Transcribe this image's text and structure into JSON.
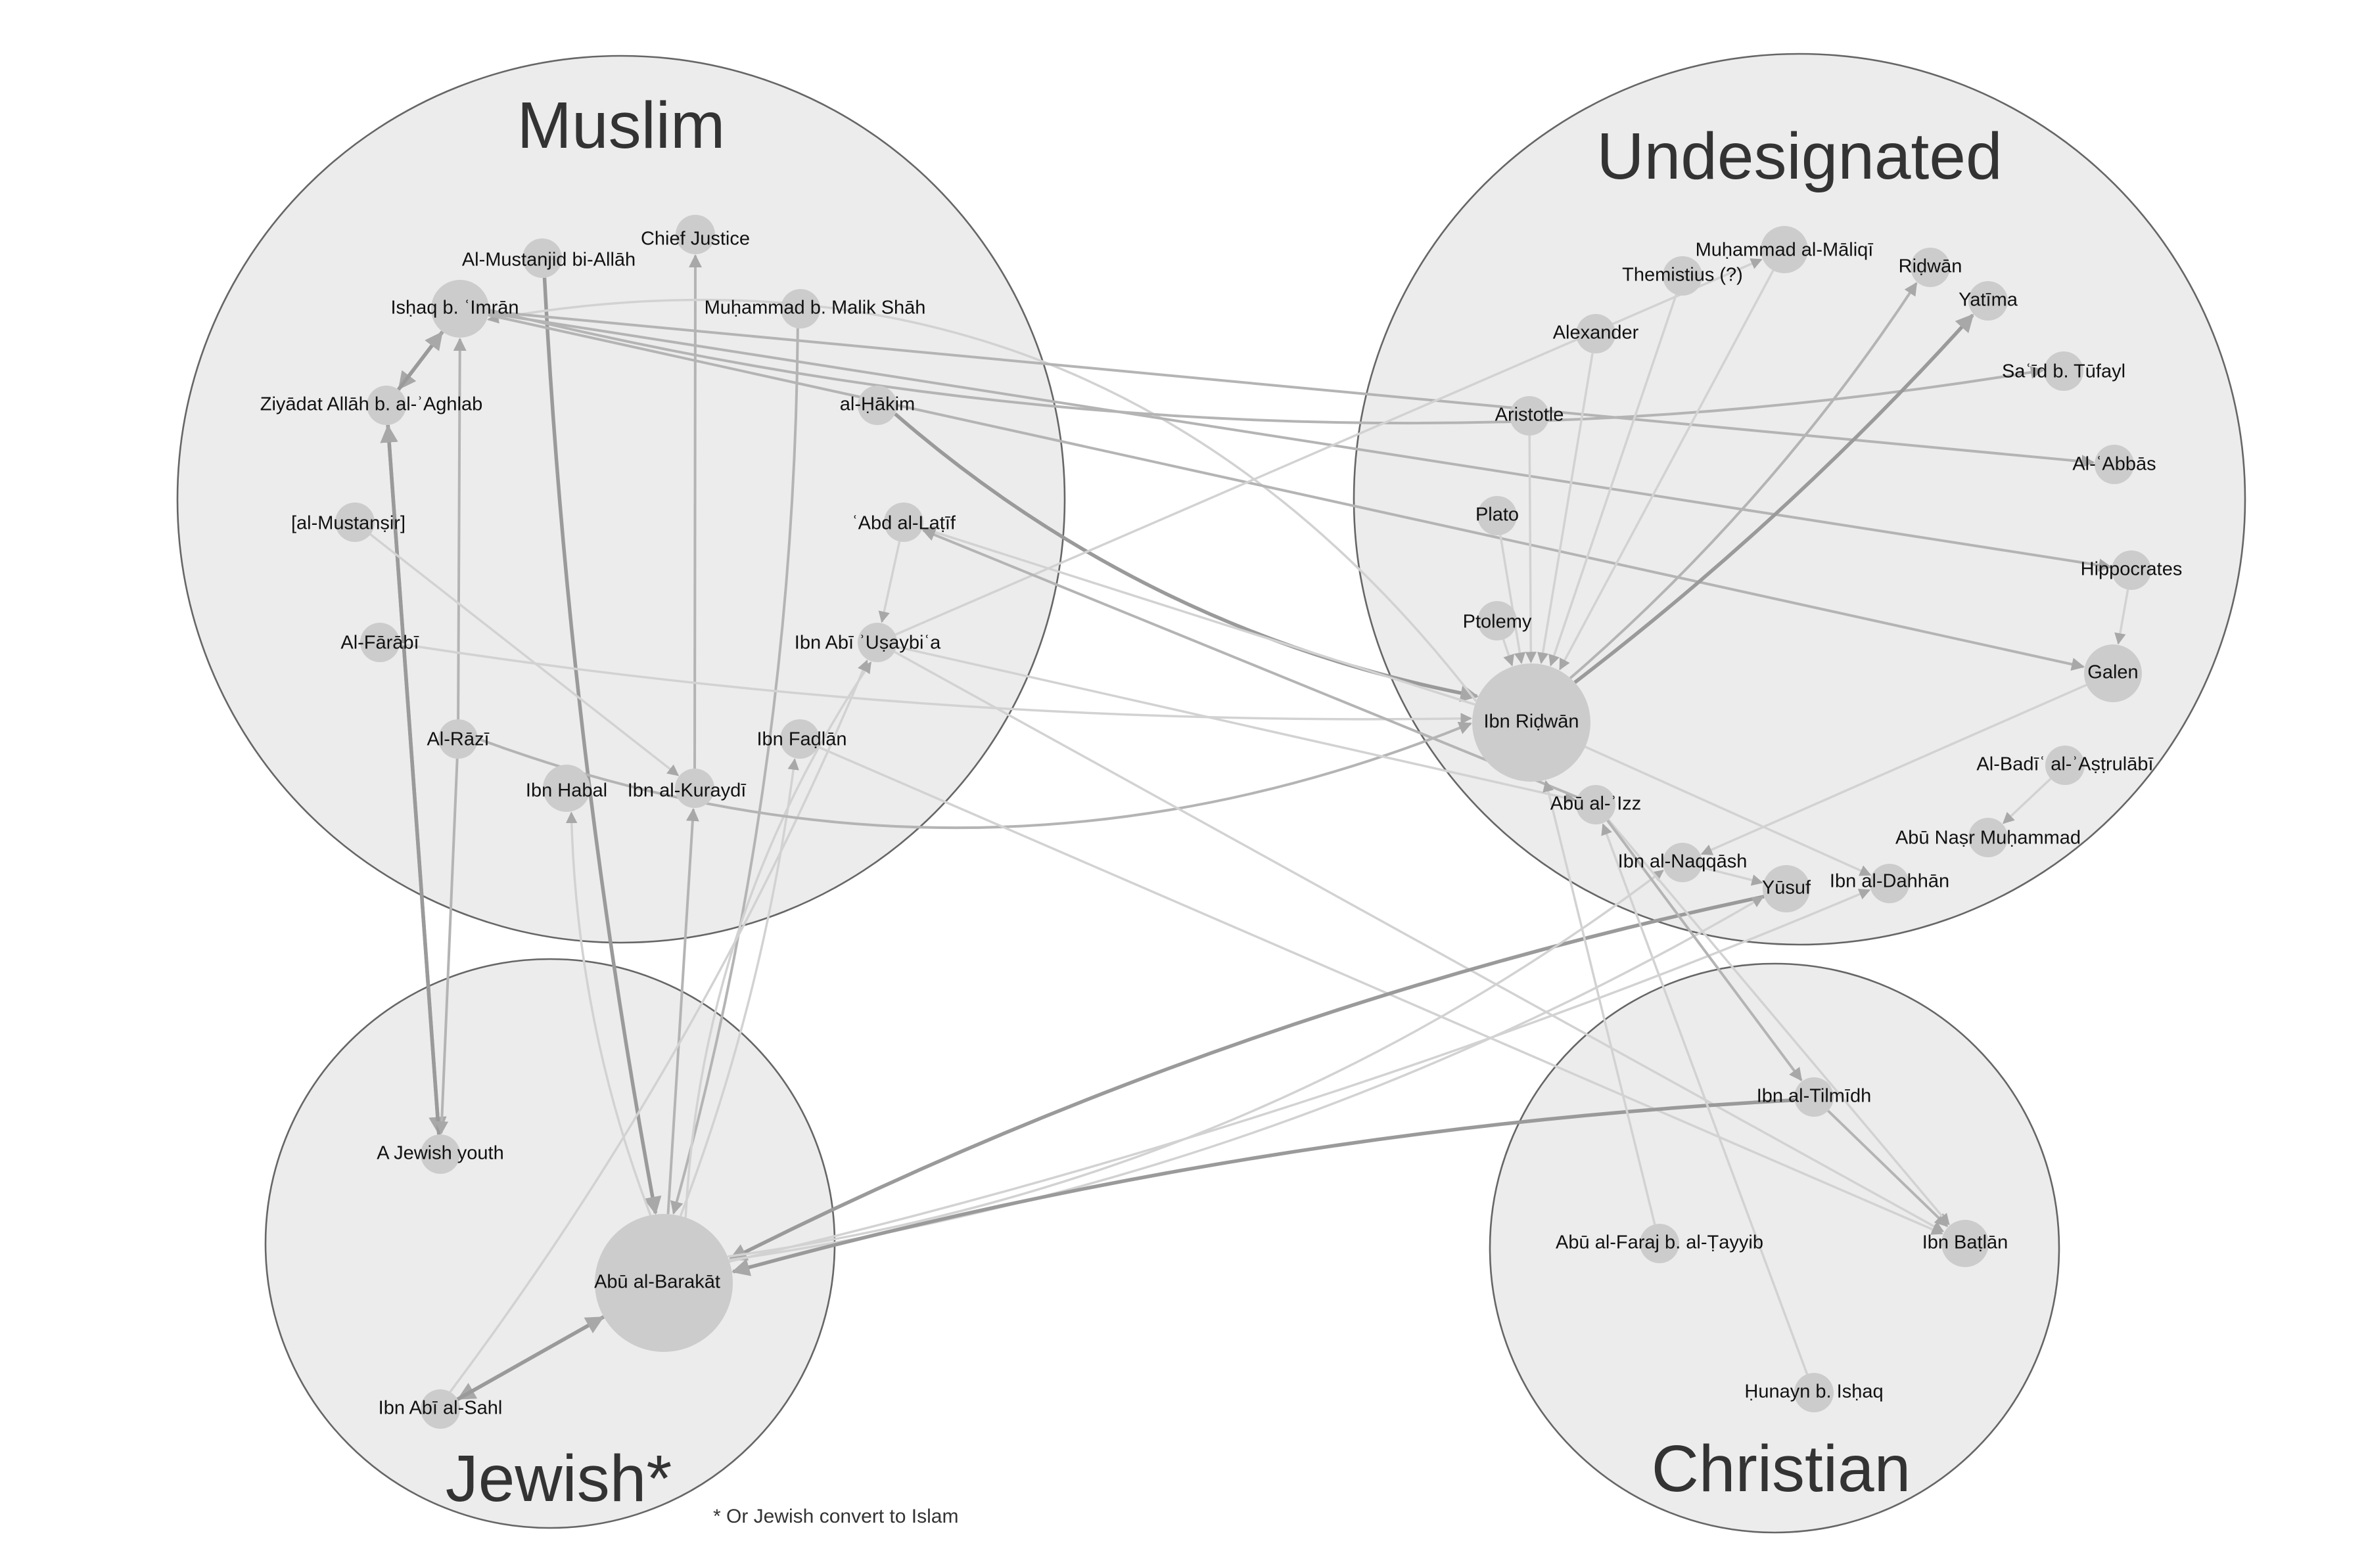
{
  "groups": {
    "muslim": {
      "title": "Muslim"
    },
    "undesignated": {
      "title": "Undesignated"
    },
    "jewish": {
      "title": "Jewish*"
    },
    "christian": {
      "title": "Christian"
    }
  },
  "footnote": "* Or Jewish convert to Islam",
  "nodes": [
    {
      "id": "ishaq",
      "label": "Isḥaq b. ʿImrān",
      "group": "muslim"
    },
    {
      "id": "mustanjid",
      "label": "Al-Mustanjid bi-Allāh",
      "group": "muslim"
    },
    {
      "id": "chief",
      "label": "Chief Justice",
      "group": "muslim"
    },
    {
      "id": "malikshah",
      "label": "Muḥammad b. Malik Shāh",
      "group": "muslim"
    },
    {
      "id": "ziyadat",
      "label": "Ziyādat Allāh b. al-ʾAghlab",
      "group": "muslim"
    },
    {
      "id": "hakim",
      "label": "al-Ḥākim",
      "group": "muslim"
    },
    {
      "id": "mustansir",
      "label": "[al-Mustanṣir]",
      "group": "muslim"
    },
    {
      "id": "abdlatif",
      "label": "ʿAbd al-Laṭīf",
      "group": "muslim"
    },
    {
      "id": "farabi",
      "label": "Al-Fārābī",
      "group": "muslim"
    },
    {
      "id": "ibnabiusaybia",
      "label": "Ibn Abī ʾUṣaybiʿa",
      "group": "muslim"
    },
    {
      "id": "razi",
      "label": "Al-Rāzī",
      "group": "muslim"
    },
    {
      "id": "fadlan",
      "label": "Ibn Faḍlān",
      "group": "muslim"
    },
    {
      "id": "habal",
      "label": "Ibn Habal",
      "group": "muslim"
    },
    {
      "id": "kuraydi",
      "label": "Ibn al-Kuraydī",
      "group": "muslim"
    },
    {
      "id": "maliqi",
      "label": "Muḥammad al-Māliqī",
      "group": "undesignated"
    },
    {
      "id": "themistius",
      "label": "Themistius (?)",
      "group": "undesignated"
    },
    {
      "id": "ridwan",
      "label": "Riḍwān",
      "group": "undesignated"
    },
    {
      "id": "yatima",
      "label": "Yatīma",
      "group": "undesignated"
    },
    {
      "id": "alexander",
      "label": "Alexander",
      "group": "undesignated"
    },
    {
      "id": "tufayl",
      "label": "Saʿīd b. Tūfayl",
      "group": "undesignated"
    },
    {
      "id": "aristotle",
      "label": "Aristotle",
      "group": "undesignated"
    },
    {
      "id": "abbas",
      "label": "Al-ʿAbbās",
      "group": "undesignated"
    },
    {
      "id": "plato",
      "label": "Plato",
      "group": "undesignated"
    },
    {
      "id": "hippocrates",
      "label": "Hippocrates",
      "group": "undesignated"
    },
    {
      "id": "ptolemy",
      "label": "Ptolemy",
      "group": "undesignated"
    },
    {
      "id": "galen",
      "label": "Galen",
      "group": "undesignated"
    },
    {
      "id": "ibnridwan",
      "label": "Ibn Riḍwān",
      "group": "undesignated"
    },
    {
      "id": "badi",
      "label": "Al-Badīʿ al-ʾAṣṭrulābī",
      "group": "undesignated"
    },
    {
      "id": "abualizz",
      "label": "Abū al-ʾIzz",
      "group": "undesignated"
    },
    {
      "id": "abunasr",
      "label": "Abū Naṣr Muḥammad",
      "group": "undesignated"
    },
    {
      "id": "naqqash",
      "label": "Ibn al-Naqqāsh",
      "group": "undesignated"
    },
    {
      "id": "yusuf",
      "label": "Yūsuf",
      "group": "undesignated"
    },
    {
      "id": "dahhan",
      "label": "Ibn al-Dahhān",
      "group": "undesignated"
    },
    {
      "id": "jewishyouth",
      "label": "A Jewish youth",
      "group": "jewish"
    },
    {
      "id": "barakat",
      "label": "Abū al-Barakāt",
      "group": "jewish"
    },
    {
      "id": "abisahl",
      "label": "Ibn Abī al-Sahl",
      "group": "jewish"
    },
    {
      "id": "tilmidh",
      "label": "Ibn al-Tilmīdh",
      "group": "christian"
    },
    {
      "id": "faraj",
      "label": "Abū al-Faraj b. al-Ṭayyib",
      "group": "christian"
    },
    {
      "id": "butlan",
      "label": "Ibn Baṭlān",
      "group": "christian"
    },
    {
      "id": "hunayn",
      "label": "Ḥunayn b. Isḥaq",
      "group": "christian"
    }
  ],
  "edges": [
    {
      "source": "ishaq",
      "target": "ziyadat",
      "weight": "heavy"
    },
    {
      "source": "ziyadat",
      "target": "ishaq",
      "weight": "heavy"
    },
    {
      "source": "ziyadat",
      "target": "jewishyouth",
      "weight": "heavy"
    },
    {
      "source": "jewishyouth",
      "target": "ziyadat",
      "weight": "heavy"
    },
    {
      "source": "razi",
      "target": "ishaq",
      "weight": "normal"
    },
    {
      "source": "razi",
      "target": "jewishyouth",
      "weight": "normal"
    },
    {
      "source": "kuraydi",
      "target": "chief",
      "weight": "normal"
    },
    {
      "source": "mustanjid",
      "target": "barakat",
      "weight": "heavy"
    },
    {
      "source": "malikshah",
      "target": "barakat",
      "weight": "normal"
    },
    {
      "source": "barakat",
      "target": "kuraydi",
      "weight": "normal"
    },
    {
      "source": "barakat",
      "target": "habal",
      "weight": "light"
    },
    {
      "source": "barakat",
      "target": "fadlan",
      "weight": "light"
    },
    {
      "source": "barakat",
      "target": "ibnabiusaybia",
      "weight": "light"
    },
    {
      "source": "barakat",
      "target": "abisahl",
      "weight": "heavy"
    },
    {
      "source": "abisahl",
      "target": "barakat",
      "weight": "heavy"
    },
    {
      "source": "abisahl",
      "target": "ibnabiusaybia",
      "weight": "light"
    },
    {
      "source": "abdlatif",
      "target": "ibnabiusaybia",
      "weight": "light"
    },
    {
      "source": "hakim",
      "target": "ibnridwan",
      "weight": "heavy"
    },
    {
      "source": "ibnridwan",
      "target": "ishaq",
      "weight": "light"
    },
    {
      "source": "ishaq",
      "target": "abbas",
      "weight": "normal"
    },
    {
      "source": "ishaq",
      "target": "hippocrates",
      "weight": "normal"
    },
    {
      "source": "ishaq",
      "target": "galen",
      "weight": "normal"
    },
    {
      "source": "ishaq",
      "target": "tufayl",
      "weight": "normal"
    },
    {
      "source": "farabi",
      "target": "ibnridwan",
      "weight": "light"
    },
    {
      "source": "razi",
      "target": "ibnridwan",
      "weight": "normal"
    },
    {
      "source": "mustansir",
      "target": "kuraydi",
      "weight": "light"
    },
    {
      "source": "ibnridwan",
      "target": "abdlatif",
      "weight": "light"
    },
    {
      "source": "ibnabiusaybia",
      "target": "maliqi",
      "weight": "light"
    },
    {
      "source": "ibnabiusaybia",
      "target": "abualizz",
      "weight": "light"
    },
    {
      "source": "abualizz",
      "target": "abdlatif",
      "weight": "normal"
    },
    {
      "source": "ibnabiusaybia",
      "target": "butlan",
      "weight": "light"
    },
    {
      "source": "fadlan",
      "target": "butlan",
      "weight": "light"
    },
    {
      "source": "themistius",
      "target": "ibnridwan",
      "weight": "light"
    },
    {
      "source": "alexander",
      "target": "ibnridwan",
      "weight": "light"
    },
    {
      "source": "aristotle",
      "target": "ibnridwan",
      "weight": "light"
    },
    {
      "source": "plato",
      "target": "ibnridwan",
      "weight": "light"
    },
    {
      "source": "ptolemy",
      "target": "ibnridwan",
      "weight": "light"
    },
    {
      "source": "maliqi",
      "target": "ibnridwan",
      "weight": "light"
    },
    {
      "source": "ibnridwan",
      "target": "ridwan",
      "weight": "normal"
    },
    {
      "source": "ibnridwan",
      "target": "yatima",
      "weight": "heavy"
    },
    {
      "source": "hippocrates",
      "target": "galen",
      "weight": "light"
    },
    {
      "source": "badi",
      "target": "abunasr",
      "weight": "light"
    },
    {
      "source": "ibnridwan",
      "target": "dahhan",
      "weight": "light"
    },
    {
      "source": "galen",
      "target": "naqqash",
      "weight": "light"
    },
    {
      "source": "naqqash",
      "target": "yusuf",
      "weight": "light"
    },
    {
      "source": "yusuf",
      "target": "barakat",
      "weight": "heavy"
    },
    {
      "source": "barakat",
      "target": "yusuf",
      "weight": "light"
    },
    {
      "source": "barakat",
      "target": "dahhan",
      "weight": "light"
    },
    {
      "source": "barakat",
      "target": "naqqash",
      "weight": "light"
    },
    {
      "source": "tilmidh",
      "target": "barakat",
      "weight": "heavy"
    },
    {
      "source": "tilmidh",
      "target": "butlan",
      "weight": "normal"
    },
    {
      "source": "abualizz",
      "target": "butlan",
      "weight": "light"
    },
    {
      "source": "abualizz",
      "target": "tilmidh",
      "weight": "normal"
    },
    {
      "source": "faraj",
      "target": "ibnridwan",
      "weight": "light"
    },
    {
      "source": "hunayn",
      "target": "abualizz",
      "weight": "light"
    }
  ]
}
